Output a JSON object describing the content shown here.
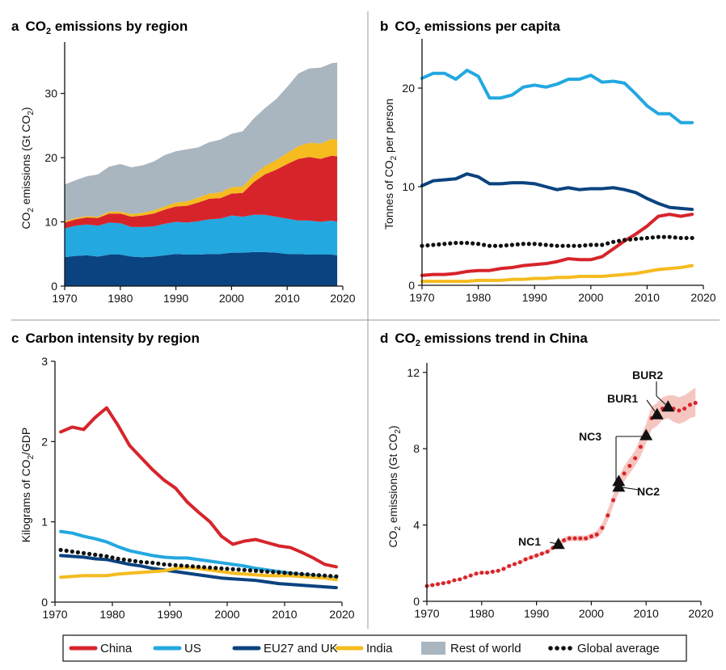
{
  "panels": {
    "a": {
      "letter": "a",
      "title_pre": "CO",
      "title_sub": "2",
      "title_post": " emissions by region",
      "ylabel_pre": "CO",
      "ylabel_sub": "2",
      "ylabel_mid": " emissions (Gt CO",
      "ylabel_sub2": "2",
      "ylabel_post": ")"
    },
    "b": {
      "letter": "b",
      "title_pre": "CO",
      "title_sub": "2",
      "title_post": " emissions per capita",
      "ylabel_pre": "Tonnes of CO",
      "ylabel_sub": "2",
      "ylabel_post": " per person"
    },
    "c": {
      "letter": "c",
      "title": "Carbon intensity by region",
      "ylabel_pre": "Kilograms of CO",
      "ylabel_sub": "2",
      "ylabel_post": "/GDP"
    },
    "d": {
      "letter": "d",
      "title_pre": "CO",
      "title_sub": "2",
      "title_post": " emissions trend in China",
      "ylabel_pre": "CO",
      "ylabel_sub": "2",
      "ylabel_mid": " emissions (Gt CO",
      "ylabel_sub2": "2",
      "ylabel_post": ")"
    }
  },
  "colors": {
    "China": "#d7242b",
    "US": "#23a8e0",
    "EU27 and UK": "#0b4380",
    "India": "#f5bb1f",
    "Rest of world": "#a9b5bf",
    "Global average": "#111111"
  },
  "legend": [
    {
      "label": "China",
      "kind": "line",
      "color": "#d7242b"
    },
    {
      "label": "US",
      "kind": "line",
      "color": "#23a8e0"
    },
    {
      "label": "EU27 and UK",
      "kind": "line",
      "color": "#0b4380"
    },
    {
      "label": "India",
      "kind": "line",
      "color": "#f5bb1f"
    },
    {
      "label": "Rest of world",
      "kind": "box",
      "color": "#a9b5bf"
    },
    {
      "label": "Global average",
      "kind": "dots",
      "color": "#111111"
    }
  ],
  "chart_data": [
    {
      "panel": "a",
      "type": "area",
      "stacked": true,
      "x": [
        1970,
        1972,
        1974,
        1976,
        1978,
        1980,
        1982,
        1984,
        1986,
        1988,
        1990,
        1992,
        1994,
        1996,
        1998,
        2000,
        2002,
        2004,
        2006,
        2008,
        2010,
        2012,
        2014,
        2016,
        2018,
        2019
      ],
      "series": [
        {
          "name": "EU27 and UK",
          "values": [
            4.5,
            4.7,
            4.8,
            4.6,
            4.9,
            4.9,
            4.6,
            4.5,
            4.6,
            4.8,
            5.0,
            4.9,
            4.9,
            5.0,
            5.0,
            5.2,
            5.2,
            5.3,
            5.3,
            5.2,
            5.0,
            5.0,
            4.9,
            4.9,
            4.9,
            4.8
          ]
        },
        {
          "name": "US",
          "values": [
            4.5,
            4.7,
            4.8,
            4.8,
            5.0,
            4.9,
            4.6,
            4.7,
            4.7,
            4.9,
            5.0,
            5.0,
            5.2,
            5.4,
            5.5,
            5.8,
            5.6,
            5.8,
            5.8,
            5.6,
            5.5,
            5.2,
            5.3,
            5.1,
            5.3,
            5.2
          ]
        },
        {
          "name": "China",
          "values": [
            0.9,
            1.0,
            1.1,
            1.2,
            1.4,
            1.5,
            1.6,
            1.8,
            2.0,
            2.2,
            2.4,
            2.6,
            2.9,
            3.2,
            3.2,
            3.4,
            3.7,
            5.1,
            6.3,
            7.3,
            8.5,
            9.6,
            9.9,
            9.8,
            10.1,
            10.2
          ]
        },
        {
          "name": "India",
          "values": [
            0.2,
            0.2,
            0.2,
            0.2,
            0.3,
            0.3,
            0.4,
            0.4,
            0.5,
            0.5,
            0.6,
            0.7,
            0.8,
            0.8,
            0.9,
            1.0,
            1.0,
            1.1,
            1.3,
            1.5,
            1.7,
            2.0,
            2.2,
            2.4,
            2.6,
            2.6
          ]
        },
        {
          "name": "Rest of world",
          "values": [
            5.7,
            5.9,
            6.2,
            6.6,
            7.0,
            7.4,
            7.3,
            7.4,
            7.6,
            8.0,
            8.0,
            8.1,
            7.8,
            8.0,
            8.2,
            8.3,
            8.6,
            8.8,
            9.0,
            9.5,
            10.3,
            11.3,
            11.6,
            11.8,
            11.8,
            12.0
          ]
        }
      ],
      "xlim": [
        1970,
        2020
      ],
      "ylim": [
        0,
        38
      ],
      "xticks": [
        "1970",
        "1980",
        "1990",
        "2000",
        "2010",
        "2020"
      ],
      "yticks": [
        "0",
        "10",
        "20",
        "30"
      ]
    },
    {
      "panel": "b",
      "type": "line",
      "x": [
        1970,
        1972,
        1974,
        1976,
        1978,
        1980,
        1982,
        1984,
        1986,
        1988,
        1990,
        1992,
        1994,
        1996,
        1998,
        2000,
        2002,
        2004,
        2006,
        2008,
        2010,
        2012,
        2014,
        2016,
        2018
      ],
      "series": [
        {
          "name": "US",
          "values": [
            21.0,
            21.5,
            21.5,
            20.9,
            21.8,
            21.2,
            19.0,
            19.0,
            19.3,
            20.1,
            20.3,
            20.1,
            20.4,
            20.9,
            20.9,
            21.3,
            20.6,
            20.7,
            20.5,
            19.4,
            18.2,
            17.4,
            17.4,
            16.5,
            16.5
          ]
        },
        {
          "name": "EU27 and UK",
          "values": [
            10.1,
            10.6,
            10.7,
            10.8,
            11.3,
            11.0,
            10.3,
            10.3,
            10.4,
            10.4,
            10.3,
            10.0,
            9.7,
            9.9,
            9.7,
            9.8,
            9.8,
            9.9,
            9.7,
            9.4,
            8.8,
            8.3,
            7.9,
            7.8,
            7.7
          ]
        },
        {
          "name": "China",
          "values": [
            1.0,
            1.1,
            1.1,
            1.2,
            1.4,
            1.5,
            1.5,
            1.7,
            1.8,
            2.0,
            2.1,
            2.2,
            2.4,
            2.7,
            2.6,
            2.6,
            2.9,
            3.7,
            4.5,
            5.2,
            6.0,
            7.0,
            7.2,
            7.0,
            7.2
          ]
        },
        {
          "name": "India",
          "values": [
            0.4,
            0.4,
            0.4,
            0.4,
            0.4,
            0.5,
            0.5,
            0.5,
            0.6,
            0.6,
            0.7,
            0.7,
            0.8,
            0.8,
            0.9,
            0.9,
            0.9,
            1.0,
            1.1,
            1.2,
            1.4,
            1.6,
            1.7,
            1.8,
            2.0
          ]
        },
        {
          "name": "Global average",
          "values": [
            4.0,
            4.1,
            4.2,
            4.3,
            4.3,
            4.2,
            4.0,
            4.0,
            4.1,
            4.2,
            4.2,
            4.1,
            4.0,
            4.0,
            4.0,
            4.1,
            4.1,
            4.4,
            4.6,
            4.7,
            4.8,
            4.9,
            4.9,
            4.8,
            4.8
          ]
        }
      ],
      "xlim": [
        1970,
        2020
      ],
      "ylim": [
        0,
        25
      ],
      "xticks": [
        "1970",
        "1980",
        "1990",
        "2000",
        "2010",
        "2020"
      ],
      "yticks": [
        "0",
        "10",
        "20"
      ]
    },
    {
      "panel": "c",
      "type": "line",
      "x": [
        1971,
        1973,
        1975,
        1977,
        1979,
        1981,
        1983,
        1985,
        1987,
        1989,
        1991,
        1993,
        1995,
        1997,
        1999,
        2001,
        2003,
        2005,
        2007,
        2009,
        2011,
        2013,
        2015,
        2017,
        2019
      ],
      "series": [
        {
          "name": "China",
          "values": [
            2.12,
            2.18,
            2.15,
            2.3,
            2.42,
            2.2,
            1.95,
            1.8,
            1.65,
            1.52,
            1.42,
            1.25,
            1.12,
            1.0,
            0.82,
            0.72,
            0.76,
            0.78,
            0.74,
            0.7,
            0.68,
            0.62,
            0.55,
            0.47,
            0.44
          ]
        },
        {
          "name": "US",
          "values": [
            0.88,
            0.86,
            0.82,
            0.79,
            0.75,
            0.69,
            0.64,
            0.61,
            0.58,
            0.56,
            0.55,
            0.55,
            0.53,
            0.51,
            0.49,
            0.47,
            0.45,
            0.42,
            0.4,
            0.38,
            0.36,
            0.34,
            0.33,
            0.31,
            0.3
          ]
        },
        {
          "name": "EU27 and UK",
          "values": [
            0.58,
            0.57,
            0.56,
            0.54,
            0.53,
            0.5,
            0.47,
            0.45,
            0.42,
            0.4,
            0.38,
            0.36,
            0.34,
            0.32,
            0.3,
            0.29,
            0.28,
            0.27,
            0.25,
            0.23,
            0.22,
            0.21,
            0.2,
            0.19,
            0.18
          ]
        },
        {
          "name": "India",
          "values": [
            0.31,
            0.32,
            0.33,
            0.33,
            0.33,
            0.35,
            0.36,
            0.37,
            0.38,
            0.39,
            0.42,
            0.43,
            0.42,
            0.4,
            0.38,
            0.36,
            0.35,
            0.34,
            0.33,
            0.33,
            0.33,
            0.32,
            0.31,
            0.3,
            0.28
          ]
        },
        {
          "name": "Global average",
          "values": [
            0.65,
            0.63,
            0.61,
            0.59,
            0.57,
            0.54,
            0.52,
            0.5,
            0.49,
            0.47,
            0.46,
            0.45,
            0.44,
            0.43,
            0.42,
            0.41,
            0.4,
            0.39,
            0.38,
            0.37,
            0.36,
            0.35,
            0.34,
            0.33,
            0.32
          ]
        }
      ],
      "xlim": [
        1970,
        2020
      ],
      "ylim": [
        0,
        3
      ],
      "xticks": [
        "1970",
        "1980",
        "1990",
        "2000",
        "2010",
        "2020"
      ],
      "yticks": [
        "0",
        "1",
        "2",
        "3"
      ]
    },
    {
      "panel": "d",
      "type": "scatter",
      "x": [
        1970,
        1971,
        1972,
        1973,
        1974,
        1975,
        1976,
        1977,
        1978,
        1979,
        1980,
        1981,
        1982,
        1983,
        1984,
        1985,
        1986,
        1987,
        1988,
        1989,
        1990,
        1991,
        1992,
        1993,
        1994,
        1995,
        1996,
        1997,
        1998,
        1999,
        2000,
        2001,
        2002,
        2003,
        2004,
        2005,
        2006,
        2007,
        2008,
        2009,
        2010,
        2011,
        2012,
        2013,
        2014,
        2015,
        2016,
        2017,
        2018,
        2019
      ],
      "series": [
        {
          "name": "China",
          "values": [
            0.8,
            0.85,
            0.9,
            0.95,
            1.0,
            1.1,
            1.15,
            1.25,
            1.35,
            1.45,
            1.5,
            1.5,
            1.55,
            1.6,
            1.7,
            1.85,
            1.95,
            2.05,
            2.2,
            2.3,
            2.4,
            2.5,
            2.6,
            2.8,
            2.95,
            3.2,
            3.3,
            3.3,
            3.3,
            3.3,
            3.4,
            3.5,
            3.85,
            4.5,
            5.3,
            6.1,
            6.7,
            7.1,
            7.5,
            8.1,
            8.8,
            9.6,
            9.8,
            10.1,
            10.2,
            10.1,
            10.0,
            10.1,
            10.3,
            10.4
          ]
        },
        {
          "name": "uncertainty_low",
          "values": [
            0.75,
            0.8,
            0.85,
            0.9,
            0.95,
            1.05,
            1.1,
            1.2,
            1.3,
            1.4,
            1.45,
            1.45,
            1.5,
            1.55,
            1.65,
            1.8,
            1.9,
            2.0,
            2.1,
            2.2,
            2.3,
            2.4,
            2.5,
            2.7,
            2.85,
            3.05,
            3.15,
            3.15,
            3.15,
            3.15,
            3.25,
            3.3,
            3.6,
            4.2,
            5.0,
            5.7,
            6.3,
            6.7,
            7.1,
            7.6,
            8.3,
            9.0,
            9.2,
            9.5,
            9.6,
            9.4,
            9.3,
            9.4,
            9.6,
            9.7
          ]
        },
        {
          "name": "uncertainty_high",
          "values": [
            0.85,
            0.9,
            0.95,
            1.0,
            1.05,
            1.15,
            1.2,
            1.3,
            1.4,
            1.5,
            1.55,
            1.55,
            1.6,
            1.65,
            1.75,
            1.9,
            2.0,
            2.1,
            2.3,
            2.4,
            2.5,
            2.6,
            2.7,
            2.9,
            3.1,
            3.35,
            3.45,
            3.45,
            3.45,
            3.45,
            3.55,
            3.7,
            4.1,
            4.8,
            5.6,
            6.5,
            7.1,
            7.5,
            7.9,
            8.6,
            9.3,
            10.2,
            10.4,
            10.7,
            10.8,
            10.8,
            10.7,
            10.8,
            11.0,
            11.2
          ]
        }
      ],
      "markers": [
        {
          "label": "NC1",
          "x": 1994,
          "y": 3.0
        },
        {
          "label": "NC2",
          "x": 2005,
          "y": 6.0
        },
        {
          "label": "NC2",
          "x": 2005,
          "y": 6.3
        },
        {
          "label": "NC3",
          "x": 2010,
          "y": 8.7
        },
        {
          "label": "BUR1",
          "x": 2012,
          "y": 9.8
        },
        {
          "label": "BUR2",
          "x": 2014,
          "y": 10.2
        }
      ],
      "annotations": [
        "NC1",
        "NC2",
        "NC3",
        "BUR1",
        "BUR2"
      ],
      "xlim": [
        1970,
        2020
      ],
      "ylim": [
        0,
        12.5
      ],
      "xticks": [
        "1970",
        "1980",
        "1990",
        "2000",
        "2010",
        "2020"
      ],
      "yticks": [
        "0",
        "4",
        "8",
        "12"
      ]
    }
  ]
}
